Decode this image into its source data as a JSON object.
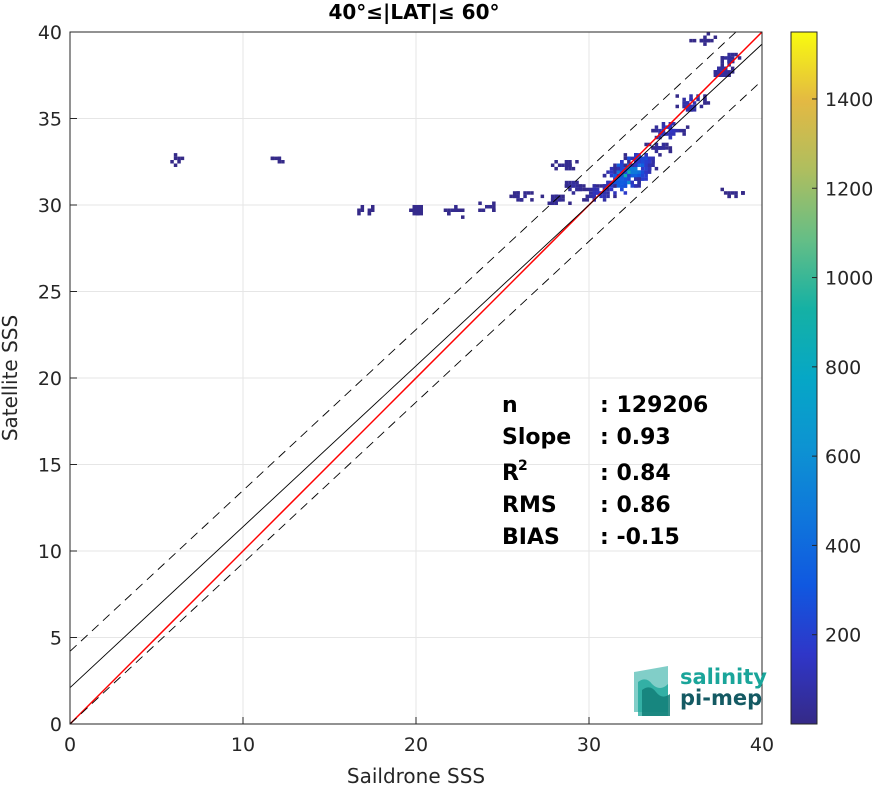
{
  "chart_data": {
    "type": "heatmap",
    "title": "40°≤|LAT|≤ 60°",
    "xlabel": "Saildrone SSS",
    "ylabel": "Satellite SSS",
    "xlim": [
      0,
      40
    ],
    "ylim": [
      0,
      40
    ],
    "xticks": [
      "0",
      "10",
      "20",
      "30",
      "40"
    ],
    "yticks": [
      "0",
      "5",
      "10",
      "15",
      "20",
      "25",
      "30",
      "35",
      "40"
    ],
    "grid": true,
    "colorbar": {
      "colormap": "parula",
      "range": [
        0,
        1550
      ],
      "ticks": [
        "200",
        "400",
        "600",
        "800",
        "1000",
        "1200",
        "1400"
      ]
    },
    "lines": [
      {
        "name": "identity",
        "slope": 1.0,
        "intercept": 0.0,
        "color": "#ff0000",
        "style": "solid"
      },
      {
        "name": "regression",
        "slope": 0.93,
        "intercept": 2.1,
        "color": "#000000",
        "style": "solid"
      },
      {
        "name": "upper bound",
        "slope": 0.93,
        "intercept": 4.2,
        "color": "#000000",
        "style": "dashed"
      },
      {
        "name": "lower bound",
        "slope": 0.93,
        "intercept": 0.0,
        "color": "#000000",
        "style": "dashed"
      }
    ],
    "density_clusters": [
      {
        "x": 32.2,
        "y": 31.7,
        "count": 900
      },
      {
        "x": 32.5,
        "y": 32.0,
        "count": 500
      },
      {
        "x": 31.8,
        "y": 31.2,
        "count": 350
      },
      {
        "x": 33.0,
        "y": 32.5,
        "count": 250
      },
      {
        "x": 34.5,
        "y": 34.2,
        "count": 150
      },
      {
        "x": 35.8,
        "y": 35.8,
        "count": 120
      },
      {
        "x": 37.6,
        "y": 37.6,
        "count": 80
      },
      {
        "x": 38.0,
        "y": 38.3,
        "count": 60
      },
      {
        "x": 30.5,
        "y": 30.6,
        "count": 140
      },
      {
        "x": 29.0,
        "y": 31.0,
        "count": 60
      },
      {
        "x": 28.0,
        "y": 30.2,
        "count": 40
      },
      {
        "x": 26.0,
        "y": 30.4,
        "count": 30
      },
      {
        "x": 24.0,
        "y": 29.8,
        "count": 25
      },
      {
        "x": 22.0,
        "y": 29.6,
        "count": 20
      },
      {
        "x": 20.0,
        "y": 29.6,
        "count": 15
      },
      {
        "x": 17.0,
        "y": 29.6,
        "count": 10
      },
      {
        "x": 28.5,
        "y": 32.2,
        "count": 30
      },
      {
        "x": 34.0,
        "y": 33.2,
        "count": 60
      },
      {
        "x": 36.5,
        "y": 39.5,
        "count": 20
      },
      {
        "x": 38.3,
        "y": 30.5,
        "count": 15
      },
      {
        "x": 6.0,
        "y": 32.5,
        "count": 5
      },
      {
        "x": 12.0,
        "y": 32.5,
        "count": 5
      }
    ],
    "stats": [
      {
        "label": "n",
        "value": ": 129206"
      },
      {
        "label": "Slope",
        "value": ": 0.93"
      },
      {
        "label": "R",
        "sup": "2",
        "value": ": 0.84"
      },
      {
        "label": "RMS",
        "value": ": 0.86"
      },
      {
        "label": "BIAS",
        "value": ": -0.15"
      }
    ]
  },
  "logo": {
    "line1": "salinity",
    "line2": "pi-mep",
    "color_primary": "#1aa59a",
    "color_dark": "#145a63"
  }
}
